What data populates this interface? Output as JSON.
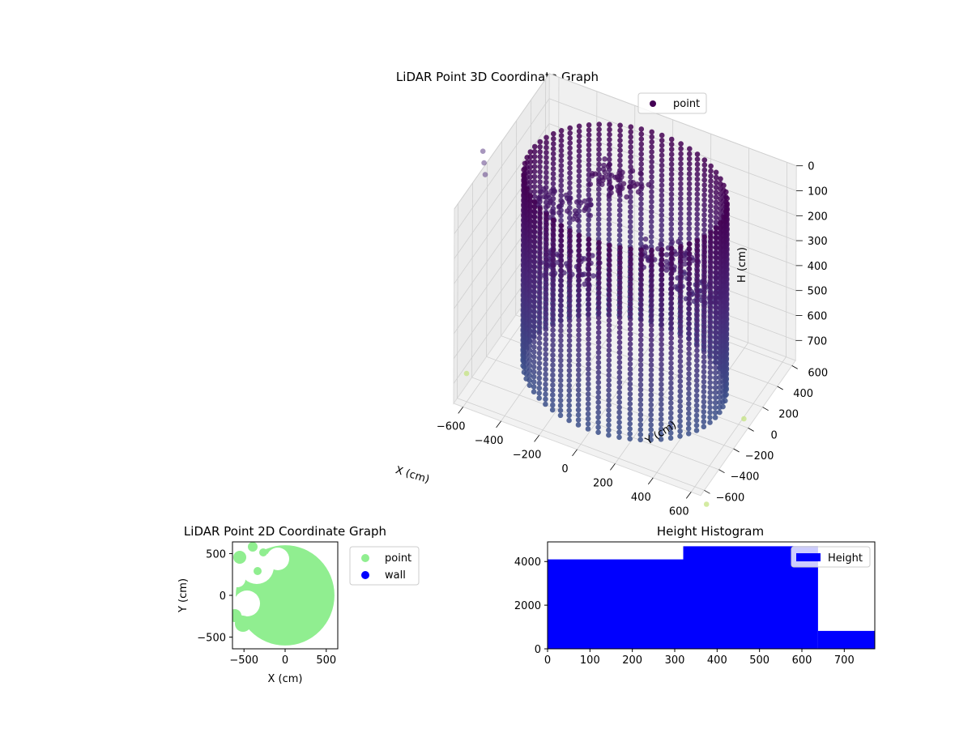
{
  "chart_data": [
    {
      "type": "scatter",
      "title": "LiDAR Point 3D Coordinate Graph",
      "xlabel": "X (cm)",
      "ylabel": "Y (cm)",
      "zlabel": "H (cm)",
      "xlim": [
        -650,
        650
      ],
      "ylim": [
        -650,
        650
      ],
      "zlim": [
        0,
        780
      ],
      "z_inverted": true,
      "x_ticks": [
        "−600",
        "−400",
        "−200",
        "0",
        "200",
        "400",
        "600"
      ],
      "y_ticks": [
        "−600",
        "−400",
        "−200",
        "0",
        "200",
        "400",
        "600"
      ],
      "z_ticks": [
        "0",
        "100",
        "200",
        "300",
        "400",
        "500",
        "600",
        "700"
      ],
      "legend": {
        "position": "top-right",
        "entries": [
          {
            "label": "point",
            "color": "#440154"
          }
        ]
      },
      "colormap": "viridis",
      "cylinder": {
        "center": [
          0,
          0
        ],
        "radius": 500,
        "h_top": 0,
        "h_bottom": 760,
        "angle_step_deg": 6,
        "h_step": 20
      },
      "interior_clusters": [
        {
          "x": -150,
          "y": 300,
          "h": 140
        },
        {
          "x": -380,
          "y": 150,
          "h": 240
        },
        {
          "x": 150,
          "y": 200,
          "h": 320
        },
        {
          "x": -250,
          "y": -100,
          "h": 350
        },
        {
          "x": 300,
          "y": 250,
          "h": 430
        }
      ],
      "outliers": [
        {
          "x": -680,
          "y": -150,
          "h": 80
        },
        {
          "x": -690,
          "y": -140,
          "h": 40
        },
        {
          "x": -700,
          "y": -130,
          "h": 0
        },
        {
          "x": 620,
          "y": 20,
          "h": 760
        },
        {
          "x": -640,
          "y": -500,
          "h": 720
        },
        {
          "x": 700,
          "y": -700,
          "h": 780
        }
      ]
    },
    {
      "type": "scatter",
      "title": "LiDAR Point 2D Coordinate Graph",
      "xlabel": "X (cm)",
      "ylabel": "Y (cm)",
      "xlim": [
        -640,
        640
      ],
      "ylim": [
        -640,
        640
      ],
      "x_ticks": [
        "−500",
        "0",
        "500"
      ],
      "y_ticks": [
        "−500",
        "0",
        "500"
      ],
      "legend": {
        "position": "outside-right",
        "entries": [
          {
            "label": "point",
            "color": "#90ee90"
          },
          {
            "label": "wall",
            "color": "#0000ff"
          }
        ]
      },
      "series": [
        {
          "name": "point",
          "color": "#90ee90",
          "shape": "disk",
          "center": [
            0,
            0
          ],
          "radius": 600
        },
        {
          "name": "wall",
          "color": "#0000ff",
          "count": 0
        }
      ]
    },
    {
      "type": "bar",
      "title": "Height Histogram",
      "xlabel": "",
      "ylabel": "",
      "xlim": [
        0,
        772
      ],
      "ylim": [
        0,
        4900
      ],
      "x_ticks": [
        "0",
        "100",
        "200",
        "300",
        "400",
        "500",
        "600",
        "700"
      ],
      "y_ticks": [
        "0",
        "2000",
        "4000"
      ],
      "legend": {
        "position": "top-right",
        "entries": [
          {
            "label": "Height",
            "color": "#0000ff"
          }
        ]
      },
      "bins": [
        {
          "x0": 0,
          "x1": 320,
          "count": 4100
        },
        {
          "x0": 320,
          "x1": 638,
          "count": 4700
        },
        {
          "x0": 638,
          "x1": 772,
          "count": 820
        }
      ]
    }
  ]
}
